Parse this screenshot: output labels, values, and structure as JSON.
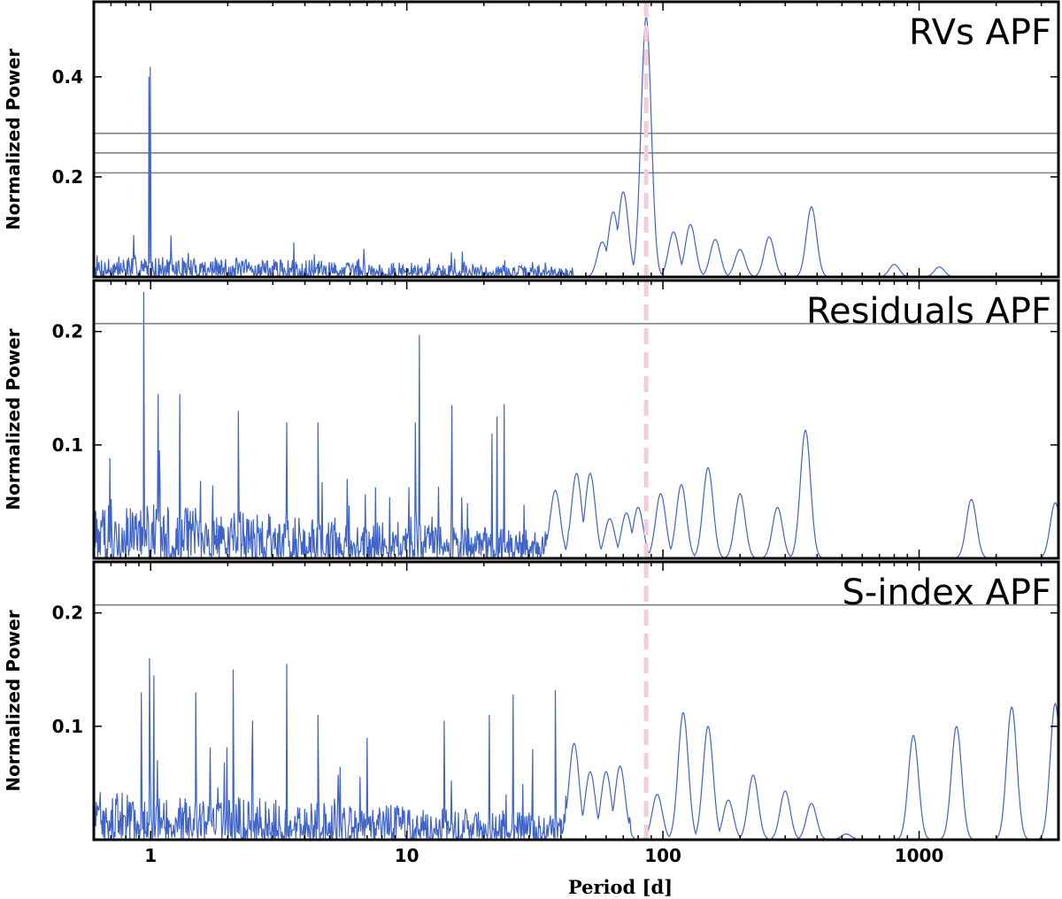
{
  "chart_data": [
    {
      "type": "line",
      "title": "RVs APF",
      "ylabel": "Normalized Power",
      "xlabel": "Period [d]",
      "xscale": "log",
      "xlim": [
        0.6,
        3500
      ],
      "ylim": [
        0,
        0.55
      ],
      "yticks": [
        0.2,
        0.4
      ],
      "ytick_labels": [
        "0.2",
        "0.4"
      ],
      "fap_levels": [
        0.287,
        0.248,
        0.208
      ],
      "marker_period": 86,
      "noise_range": [
        0.6,
        45
      ],
      "noise_amp": 0.045,
      "spikes": [
        {
          "x": 0.997,
          "y": 0.42
        },
        {
          "x": 0.985,
          "y": 0.4
        }
      ],
      "peaks": [
        {
          "x": 58,
          "y": 0.07
        },
        {
          "x": 64,
          "y": 0.13
        },
        {
          "x": 70,
          "y": 0.17
        },
        {
          "x": 86,
          "y": 0.52
        },
        {
          "x": 110,
          "y": 0.09
        },
        {
          "x": 128,
          "y": 0.105
        },
        {
          "x": 160,
          "y": 0.075
        },
        {
          "x": 200,
          "y": 0.055
        },
        {
          "x": 260,
          "y": 0.08
        },
        {
          "x": 380,
          "y": 0.14
        },
        {
          "x": 800,
          "y": 0.025
        },
        {
          "x": 1200,
          "y": 0.02
        }
      ]
    },
    {
      "type": "line",
      "title": "Residuals APF",
      "ylabel": "Normalized Power",
      "xlabel": "Period [d]",
      "xscale": "log",
      "xlim": [
        0.6,
        3500
      ],
      "ylim": [
        0,
        0.245
      ],
      "yticks": [
        0.1,
        0.2
      ],
      "ytick_labels": [
        "0.1",
        "0.2"
      ],
      "fap_levels": [
        0.207
      ],
      "marker_period": 86,
      "noise_range": [
        0.6,
        45
      ],
      "noise_amp": 0.05,
      "spikes": [
        {
          "x": 0.94,
          "y": 0.235
        },
        {
          "x": 1.07,
          "y": 0.145
        },
        {
          "x": 1.3,
          "y": 0.145
        },
        {
          "x": 2.2,
          "y": 0.13
        },
        {
          "x": 3.4,
          "y": 0.12
        },
        {
          "x": 4.5,
          "y": 0.12
        },
        {
          "x": 11.2,
          "y": 0.197
        },
        {
          "x": 10.8,
          "y": 0.12
        },
        {
          "x": 15,
          "y": 0.135
        },
        {
          "x": 21.5,
          "y": 0.11
        },
        {
          "x": 22.5,
          "y": 0.125
        },
        {
          "x": 24,
          "y": 0.136
        }
      ],
      "peaks": [
        {
          "x": 38,
          "y": 0.06
        },
        {
          "x": 46,
          "y": 0.075
        },
        {
          "x": 52,
          "y": 0.075
        },
        {
          "x": 62,
          "y": 0.035
        },
        {
          "x": 72,
          "y": 0.04
        },
        {
          "x": 80,
          "y": 0.045
        },
        {
          "x": 98,
          "y": 0.057
        },
        {
          "x": 118,
          "y": 0.065
        },
        {
          "x": 150,
          "y": 0.08
        },
        {
          "x": 200,
          "y": 0.057
        },
        {
          "x": 280,
          "y": 0.045
        },
        {
          "x": 360,
          "y": 0.113
        },
        {
          "x": 1600,
          "y": 0.052
        },
        {
          "x": 3400,
          "y": 0.049
        }
      ]
    },
    {
      "type": "line",
      "title": "S-index APF",
      "ylabel": "Normalized Power",
      "xlabel": "Period [d]",
      "xscale": "log",
      "xlim": [
        0.6,
        3500
      ],
      "ylim": [
        0,
        0.245
      ],
      "yticks": [
        0.1,
        0.2
      ],
      "ytick_labels": [
        "0.1",
        "0.2"
      ],
      "xticks": [
        1,
        10,
        100,
        1000
      ],
      "xtick_labels": [
        "1",
        "10",
        "100",
        "1000"
      ],
      "fap_levels": [
        0.207
      ],
      "marker_period": 86,
      "noise_range": [
        0.6,
        75
      ],
      "noise_amp": 0.045,
      "spikes": [
        {
          "x": 0.92,
          "y": 0.13
        },
        {
          "x": 0.99,
          "y": 0.16
        },
        {
          "x": 1.03,
          "y": 0.145
        },
        {
          "x": 1.5,
          "y": 0.13
        },
        {
          "x": 2.1,
          "y": 0.15
        },
        {
          "x": 2.5,
          "y": 0.105
        },
        {
          "x": 3.4,
          "y": 0.155
        },
        {
          "x": 4.5,
          "y": 0.11
        },
        {
          "x": 7,
          "y": 0.09
        },
        {
          "x": 14,
          "y": 0.105
        },
        {
          "x": 21,
          "y": 0.11
        },
        {
          "x": 26,
          "y": 0.128
        },
        {
          "x": 38,
          "y": 0.132
        },
        {
          "x": 31,
          "y": 0.08
        }
      ],
      "peaks": [
        {
          "x": 45,
          "y": 0.085
        },
        {
          "x": 52,
          "y": 0.06
        },
        {
          "x": 60,
          "y": 0.06
        },
        {
          "x": 68,
          "y": 0.065
        },
        {
          "x": 95,
          "y": 0.04
        },
        {
          "x": 120,
          "y": 0.112
        },
        {
          "x": 150,
          "y": 0.1
        },
        {
          "x": 180,
          "y": 0.035
        },
        {
          "x": 225,
          "y": 0.057
        },
        {
          "x": 300,
          "y": 0.043
        },
        {
          "x": 380,
          "y": 0.032
        },
        {
          "x": 520,
          "y": 0.005
        },
        {
          "x": 950,
          "y": 0.092
        },
        {
          "x": 1400,
          "y": 0.1
        },
        {
          "x": 2300,
          "y": 0.117
        },
        {
          "x": 3400,
          "y": 0.12
        }
      ]
    }
  ]
}
